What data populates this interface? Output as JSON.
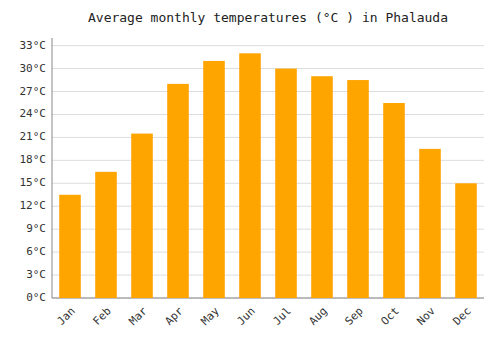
{
  "chart_data": {
    "type": "bar",
    "title": "Average monthly temperatures (°C ) in Phalauda",
    "categories": [
      "Jan",
      "Feb",
      "Mar",
      "Apr",
      "May",
      "Jun",
      "Jul",
      "Aug",
      "Sep",
      "Oct",
      "Nov",
      "Dec"
    ],
    "values": [
      13.5,
      16.5,
      21.5,
      28.0,
      31.0,
      32.0,
      30.0,
      29.0,
      28.5,
      25.5,
      19.5,
      15.0
    ],
    "color": "#FFA500",
    "ylim": [
      0,
      34
    ],
    "yticks": [
      {
        "value": 0,
        "label": "0°C"
      },
      {
        "value": 3,
        "label": "3°C"
      },
      {
        "value": 6,
        "label": "6°C"
      },
      {
        "value": 9,
        "label": "9°C"
      },
      {
        "value": 12,
        "label": "12°C"
      },
      {
        "value": 15,
        "label": "15°C"
      },
      {
        "value": 18,
        "label": "18°C"
      },
      {
        "value": 21,
        "label": "21°C"
      },
      {
        "value": 24,
        "label": "24°C"
      },
      {
        "value": 27,
        "label": "27°C"
      },
      {
        "value": 30,
        "label": "30°C"
      },
      {
        "value": 33,
        "label": "33°C"
      }
    ],
    "grid": true
  }
}
